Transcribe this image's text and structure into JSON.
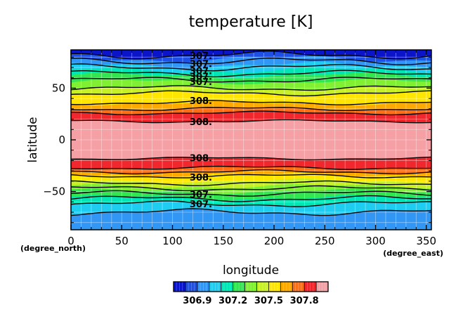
{
  "chart_data": {
    "type": "heatmap",
    "title": "temperature [K]",
    "xlabel": "longitude",
    "ylabel": "latitude",
    "x_unit": "(degree_east)",
    "y_unit": "(degree_north)",
    "xlim": [
      0,
      355
    ],
    "ylim": [
      -87,
      87
    ],
    "x_ticks": [
      0,
      50,
      100,
      150,
      200,
      250,
      300,
      350
    ],
    "y_ticks": [
      -50,
      0,
      50
    ],
    "x_tick_labels": [
      "0",
      "50",
      "100",
      "150",
      "200",
      "250",
      "300",
      "350"
    ],
    "y_tick_labels": [
      "−50",
      "0",
      "50"
    ],
    "grid": true,
    "color_bands": [
      {
        "from": 82,
        "to": 87,
        "color": "#0a14c8"
      },
      {
        "from": 78,
        "to": 82,
        "color": "#1e50e6"
      },
      {
        "from": 72,
        "to": 78,
        "color": "#3296f5"
      },
      {
        "from": 67,
        "to": 72,
        "color": "#1ecdf0"
      },
      {
        "from": 62,
        "to": 67,
        "color": "#00e6b4"
      },
      {
        "from": 56,
        "to": 62,
        "color": "#32e650"
      },
      {
        "from": 50,
        "to": 56,
        "color": "#82f032"
      },
      {
        "from": 45,
        "to": 50,
        "color": "#c8f028"
      },
      {
        "from": 35,
        "to": 45,
        "color": "#ffe600"
      },
      {
        "from": 30,
        "to": 35,
        "color": "#ffaa00"
      },
      {
        "from": 26,
        "to": 30,
        "color": "#ff6e14"
      },
      {
        "from": 18,
        "to": 26,
        "color": "#f0282d"
      },
      {
        "from": -18,
        "to": 18,
        "color": "#f5a0a5"
      },
      {
        "from": -27,
        "to": -18,
        "color": "#f0282d"
      },
      {
        "from": -31,
        "to": -27,
        "color": "#ff6e14"
      },
      {
        "from": -34,
        "to": -31,
        "color": "#ffaa00"
      },
      {
        "from": -40,
        "to": -34,
        "color": "#ffe600"
      },
      {
        "from": -45,
        "to": -40,
        "color": "#c8f028"
      },
      {
        "from": -50,
        "to": -45,
        "color": "#82f032"
      },
      {
        "from": -56,
        "to": -50,
        "color": "#32e650"
      },
      {
        "from": -62,
        "to": -56,
        "color": "#00e6b4"
      },
      {
        "from": -70,
        "to": -62,
        "color": "#1ecdf0"
      },
      {
        "from": -87,
        "to": -70,
        "color": "#3296f5"
      }
    ],
    "contours": [
      {
        "lat": 82,
        "label": "307."
      },
      {
        "lat": 76,
        "label": "307."
      },
      {
        "lat": 70,
        "label": "307."
      },
      {
        "lat": 64,
        "label": "307."
      },
      {
        "lat": 58,
        "label": "307."
      },
      {
        "lat": 50,
        "label": ""
      },
      {
        "lat": 45,
        "label": ""
      },
      {
        "lat": 36,
        "label": "308."
      },
      {
        "lat": 30,
        "label": ""
      },
      {
        "lat": 26,
        "label": ""
      },
      {
        "lat": 18,
        "label": "308."
      },
      {
        "lat": -18,
        "label": "308."
      },
      {
        "lat": -27,
        "label": ""
      },
      {
        "lat": -31,
        "label": ""
      },
      {
        "lat": -35,
        "label": "308."
      },
      {
        "lat": -42,
        "label": ""
      },
      {
        "lat": -47,
        "label": ""
      },
      {
        "lat": -52,
        "label": "307."
      },
      {
        "lat": -57,
        "label": ""
      },
      {
        "lat": -62,
        "label": "307."
      },
      {
        "lat": -70,
        "label": ""
      }
    ],
    "colorbar": {
      "colors": [
        "#0a14c8",
        "#1e50e6",
        "#3296f5",
        "#1ecdf0",
        "#00e6b4",
        "#32e650",
        "#82f032",
        "#c8f028",
        "#ffe600",
        "#ffaa00",
        "#ff6e14",
        "#f0282d",
        "#f5a0a5"
      ],
      "tick_labels": [
        "306.9",
        "307.2",
        "307.5",
        "307.8"
      ]
    }
  }
}
